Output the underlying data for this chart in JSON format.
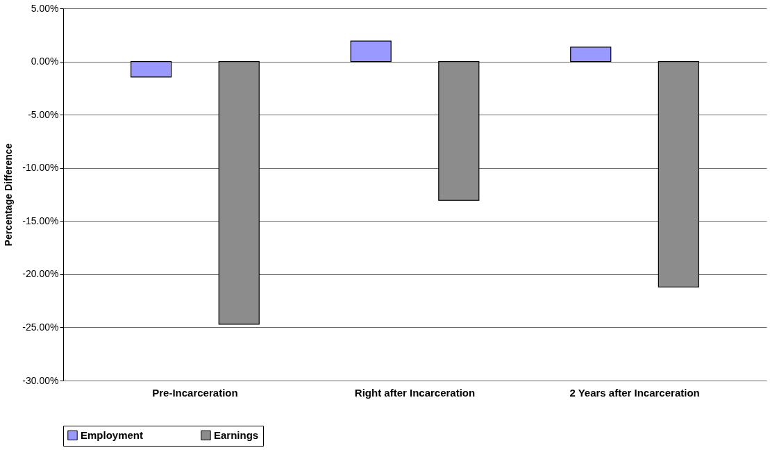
{
  "chart_data": {
    "type": "bar",
    "ylabel": "Percentage Difference",
    "categories": [
      "Pre-Incarceration",
      "Right after Incarceration",
      "2 Years after Incarceration"
    ],
    "series": [
      {
        "name": "Employment",
        "color": "#9999ff",
        "values": [
          -1.45,
          1.92,
          1.35
        ]
      },
      {
        "name": "Earnings",
        "color": "#8c8c8c",
        "values": [
          -24.7,
          -13.05,
          -21.2
        ]
      }
    ],
    "ylim": [
      -30,
      5
    ],
    "yticks": [
      {
        "value": 5,
        "label": "5.00%"
      },
      {
        "value": 0,
        "label": "0.00%"
      },
      {
        "value": -5,
        "label": "-5.00%"
      },
      {
        "value": -10,
        "label": "-10.00%"
      },
      {
        "value": -15,
        "label": "-15.00%"
      },
      {
        "value": -20,
        "label": "-20.00%"
      },
      {
        "value": -25,
        "label": "-25.00%"
      },
      {
        "value": -30,
        "label": "-30.00%"
      }
    ],
    "grid": "y",
    "legend": "bottom"
  }
}
